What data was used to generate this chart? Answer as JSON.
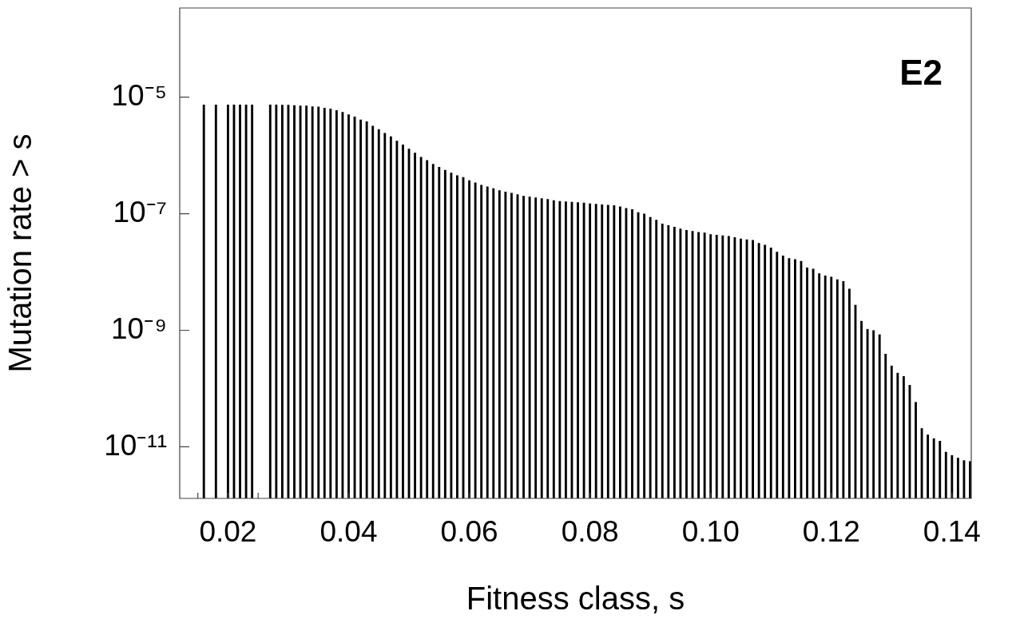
{
  "chart_data": {
    "type": "bar",
    "xlabel": "Fitness class, s",
    "ylabel": "Mutation rate > s",
    "annotations": [
      "E2"
    ],
    "log": "y",
    "grid": false,
    "legend": false,
    "color": "#000000",
    "x": [
      0.016,
      0.018,
      0.02,
      0.021,
      0.022,
      0.023,
      0.024,
      0.027,
      0.028,
      0.029,
      0.03,
      0.031,
      0.032,
      0.033,
      0.034,
      0.035,
      0.036,
      0.037,
      0.038,
      0.039,
      0.04,
      0.041,
      0.042,
      0.043,
      0.044,
      0.045,
      0.046,
      0.047,
      0.048,
      0.049,
      0.05,
      0.051,
      0.052,
      0.053,
      0.054,
      0.055,
      0.056,
      0.057,
      0.058,
      0.059,
      0.06,
      0.061,
      0.062,
      0.063,
      0.064,
      0.065,
      0.066,
      0.067,
      0.068,
      0.069,
      0.07,
      0.071,
      0.072,
      0.073,
      0.074,
      0.075,
      0.076,
      0.077,
      0.078,
      0.079,
      0.08,
      0.081,
      0.082,
      0.083,
      0.084,
      0.085,
      0.086,
      0.087,
      0.088,
      0.089,
      0.09,
      0.091,
      0.092,
      0.093,
      0.094,
      0.095,
      0.096,
      0.097,
      0.098,
      0.099,
      0.1,
      0.101,
      0.102,
      0.103,
      0.104,
      0.105,
      0.106,
      0.107,
      0.108,
      0.109,
      0.11,
      0.111,
      0.112,
      0.113,
      0.114,
      0.115,
      0.116,
      0.117,
      0.118,
      0.119,
      0.12,
      0.121,
      0.122,
      0.123,
      0.124,
      0.125,
      0.126,
      0.127,
      0.128,
      0.129,
      0.13,
      0.131,
      0.132,
      0.133,
      0.134,
      0.135,
      0.136,
      0.137,
      0.138,
      0.139,
      0.14,
      0.141,
      0.142,
      0.143
    ],
    "values": [
      7.4e-06,
      7.4e-06,
      7.4e-06,
      7.4e-06,
      7.4e-06,
      7.4e-06,
      7.4e-06,
      7.4e-06,
      7.4e-06,
      7.3e-06,
      7.3e-06,
      7.2e-06,
      7.1e-06,
      7.1e-06,
      6.9e-06,
      6.8e-06,
      6.5e-06,
      6.3e-06,
      5.9e-06,
      5.5e-06,
      5e-06,
      4.6e-06,
      4.1e-06,
      3.8e-06,
      3.2e-06,
      2.8e-06,
      2.4e-06,
      2.1e-06,
      1.77e-06,
      1.52e-06,
      1.29e-06,
      1.1e-06,
      9.3e-07,
      8.2e-07,
      7.1e-07,
      6.3e-07,
      5.6e-07,
      5e-07,
      4.5e-07,
      4.2e-07,
      3.7e-07,
      3.4e-07,
      3.1e-07,
      2.9e-07,
      2.7e-07,
      2.5e-07,
      2.36e-07,
      2.26e-07,
      2.14e-07,
      2e-07,
      1.94e-07,
      1.88e-07,
      1.82e-07,
      1.76e-07,
      1.68e-07,
      1.63e-07,
      1.61e-07,
      1.58e-07,
      1.56e-07,
      1.53e-07,
      1.49e-07,
      1.46e-07,
      1.43e-07,
      1.41e-07,
      1.38e-07,
      1.32e-07,
      1.24e-07,
      1.18e-07,
      1.05e-07,
      9.9e-08,
      8.7e-08,
      7.8e-08,
      6.7e-08,
      6.3e-08,
      5.9e-08,
      5.5e-08,
      5.2e-08,
      5e-08,
      4.8e-08,
      4.7e-08,
      4.4e-08,
      4.3e-08,
      4.2e-08,
      4.1e-08,
      3.9e-08,
      3.7e-08,
      3.6e-08,
      3.5e-08,
      3.1e-08,
      2.9e-08,
      2.6e-08,
      2.2e-08,
      1.89e-08,
      1.71e-08,
      1.64e-08,
      1.53e-08,
      1.18e-08,
      1.12e-08,
      9.4e-09,
      8.6e-09,
      8.2e-09,
      7.4e-09,
      6.9e-09,
      5.1e-09,
      2.7e-09,
      1.43e-09,
      1.04e-09,
      9.9e-10,
      8.4e-10,
      3.9e-10,
      2.44e-10,
      1.84e-10,
      1.61e-10,
      1.14e-10,
      5.8e-11,
      2.06e-11,
      1.6e-11,
      1.38e-11,
      1.25e-11,
      8.1e-12,
      7.1e-12,
      6.4e-12,
      5.8e-12,
      5.6e-12
    ],
    "xlim": [
      0.012,
      0.1432
    ],
    "ylim": [
      1.3e-12,
      0.00034
    ],
    "xticks": [
      {
        "value": 0.015,
        "label": null
      },
      0.02,
      {
        "value": 0.025,
        "label": null
      },
      0.04,
      0.06,
      0.08,
      {
        "value": 0.1,
        "label": "0.10"
      },
      0.12,
      0.14
    ],
    "yticks": [
      {
        "value": 1e-11,
        "label": "10⁻¹¹"
      },
      {
        "value": 1e-09,
        "label": "10⁻⁹"
      },
      {
        "value": 1e-07,
        "label": "10⁻⁷"
      },
      {
        "value": 1e-05,
        "label": "10⁻⁵"
      }
    ]
  }
}
